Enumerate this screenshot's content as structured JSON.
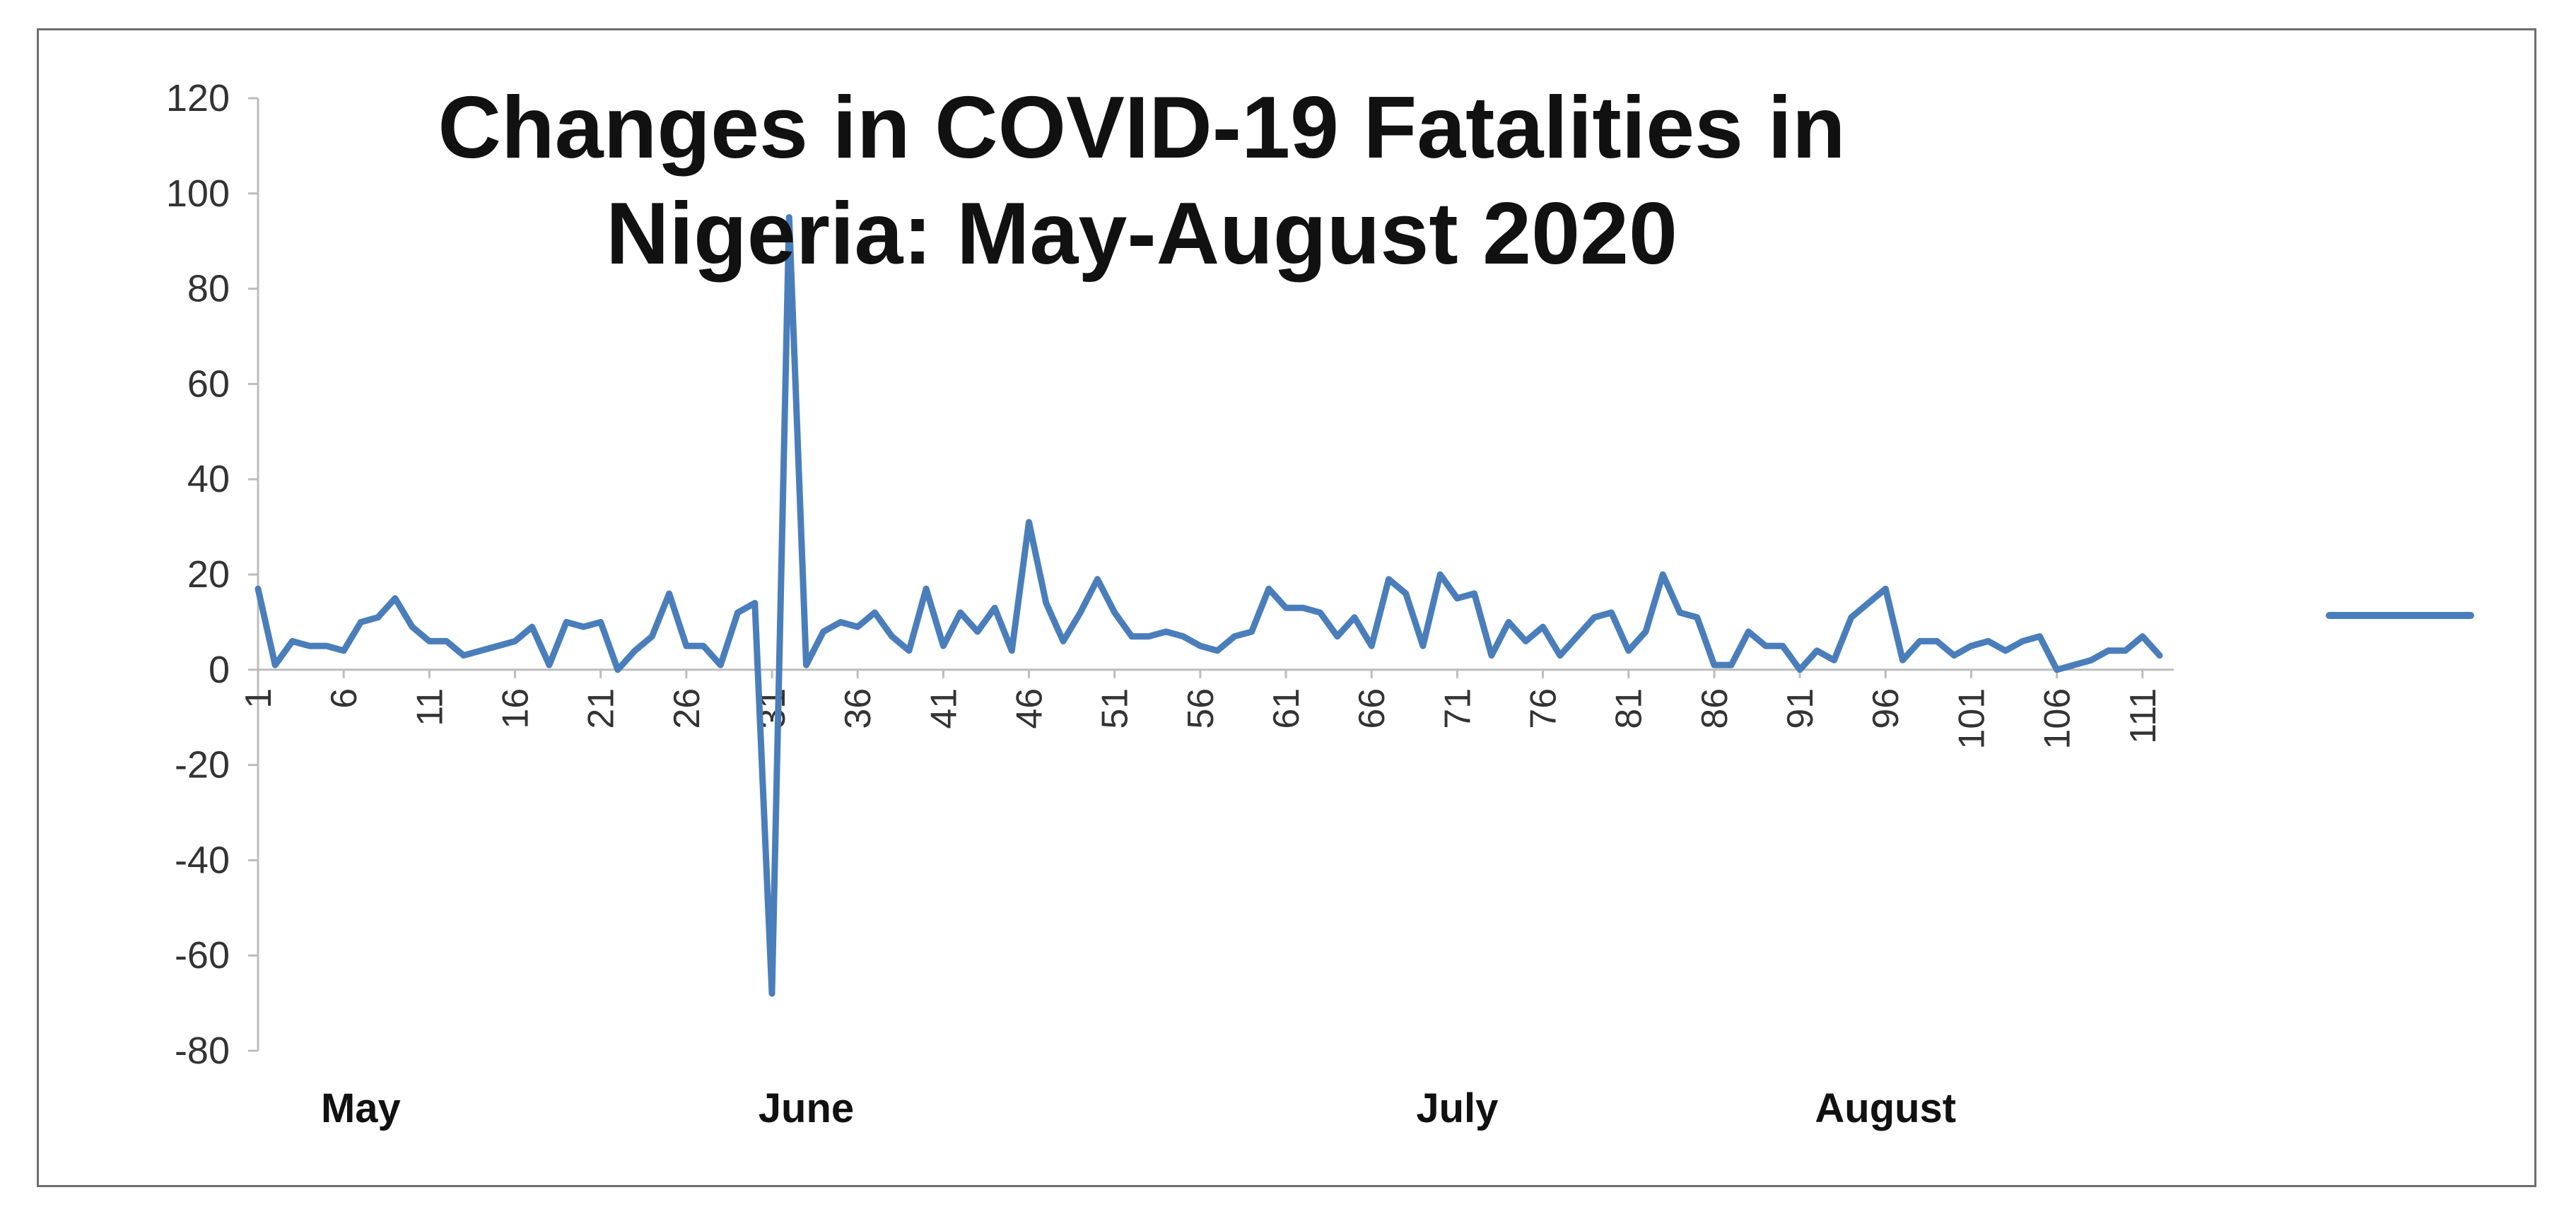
{
  "chart_data": {
    "type": "line",
    "title_lines": [
      "Changes in COVID-19 Fatalities in",
      "Nigeria: May-August 2020"
    ],
    "xlabel": "",
    "ylabel": "",
    "ylim": [
      -80,
      120
    ],
    "y_ticks": [
      120,
      100,
      80,
      60,
      40,
      20,
      0,
      -20,
      -40,
      -60,
      -80
    ],
    "x_ticks": [
      1,
      6,
      11,
      16,
      21,
      26,
      31,
      36,
      41,
      46,
      51,
      56,
      61,
      66,
      71,
      76,
      81,
      86,
      91,
      96,
      101,
      106,
      111
    ],
    "month_labels": [
      {
        "text": "May",
        "x": 7
      },
      {
        "text": "June",
        "x": 33
      },
      {
        "text": "July",
        "x": 71
      },
      {
        "text": "August",
        "x": 96
      }
    ],
    "legend": "right",
    "color": "#4a7ebb",
    "series": [
      {
        "x": [
          1,
          2,
          3,
          4,
          5,
          6,
          7,
          8,
          9,
          10,
          11,
          12,
          13,
          14,
          15,
          16,
          17,
          18,
          19,
          20,
          21,
          22,
          23,
          24,
          25,
          26,
          27,
          28,
          29,
          30,
          31,
          32,
          33,
          34,
          35,
          36,
          37,
          38,
          39,
          40,
          41,
          42,
          43,
          44,
          45,
          46,
          47,
          48,
          49,
          50,
          51,
          52,
          53,
          54,
          55,
          56,
          57,
          58,
          59,
          60,
          61,
          62,
          63,
          64,
          65,
          66,
          67,
          68,
          69,
          70,
          71,
          72,
          73,
          74,
          75,
          76,
          77,
          78,
          79,
          80,
          81,
          82,
          83,
          84,
          85,
          86,
          87,
          88,
          89,
          90,
          91,
          92,
          93,
          94,
          95,
          96,
          97,
          98,
          99,
          100,
          101,
          102,
          103,
          104,
          105,
          106,
          107,
          108,
          109,
          110,
          111,
          112
        ],
        "values": [
          17,
          1,
          6,
          5,
          5,
          4,
          10,
          11,
          15,
          9,
          6,
          6,
          3,
          4,
          5,
          6,
          9,
          1,
          10,
          9,
          10,
          0,
          4,
          7,
          16,
          5,
          5,
          1,
          12,
          14,
          -68,
          95,
          1,
          8,
          10,
          9,
          12,
          7,
          4,
          17,
          5,
          12,
          8,
          13,
          4,
          31,
          14,
          6,
          12,
          19,
          12,
          7,
          7,
          8,
          7,
          5,
          4,
          7,
          8,
          17,
          13,
          13,
          12,
          7,
          11,
          5,
          19,
          16,
          5,
          20,
          15,
          16,
          3,
          10,
          6,
          9,
          3,
          7,
          11,
          12,
          4,
          8,
          20,
          12,
          11,
          1,
          1,
          8,
          5,
          5,
          0,
          4,
          2,
          11,
          14,
          17,
          2,
          6,
          6,
          3,
          5,
          6,
          4,
          6,
          7,
          0,
          1,
          2,
          4,
          4,
          7,
          3
        ]
      }
    ]
  }
}
